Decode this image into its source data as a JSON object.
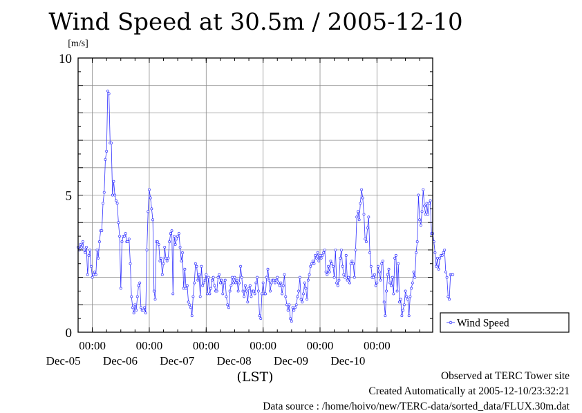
{
  "chart_data": {
    "type": "line",
    "title": "Wind Speed at 30.5m / 2005-12-10",
    "ylabel": "[m/s]",
    "xlabel": "(LST)",
    "ylim": [
      0,
      10
    ],
    "yticks": [
      "0",
      "5",
      "10"
    ],
    "xlim": [
      "2005-12-04T18:00",
      "2005-12-10T23:30"
    ],
    "time_ticks": [
      {
        "x": "2005-12-05T00:00",
        "time": "00:00",
        "date": "Dec-05"
      },
      {
        "x": "2005-12-06T00:00",
        "time": "00:00",
        "date": "Dec-06"
      },
      {
        "x": "2005-12-07T00:00",
        "time": "00:00",
        "date": "Dec-07"
      },
      {
        "x": "2005-12-08T00:00",
        "time": "00:00",
        "date": "Dec-08"
      },
      {
        "x": "2005-12-09T00:00",
        "time": "00:00",
        "date": "Dec-09"
      },
      {
        "x": "2005-12-10T00:00",
        "time": "00:00",
        "date": "Dec-10"
      }
    ],
    "grid": true,
    "legend_position": "right",
    "series": [
      {
        "name": "Wind Speed",
        "color": "#3333ff",
        "x_start": "2005-12-04T18:00",
        "x_step_minutes": 30,
        "values": [
          3.1,
          3.0,
          3.2,
          3.1,
          3.3,
          3.0,
          2.9,
          3.1,
          2.1,
          2.8,
          3.0,
          2.4,
          2.0,
          2.1,
          2.2,
          2.1,
          3.0,
          2.7,
          3.3,
          3.7,
          3.7,
          4.7,
          5.1,
          6.3,
          6.6,
          8.8,
          8.7,
          6.9,
          6.9,
          5.0,
          5.5,
          5.0,
          4.8,
          4.7,
          4.0,
          3.5,
          1.6,
          3.3,
          3.5,
          3.5,
          3.6,
          3.3,
          3.3,
          3.4,
          2.5,
          1.3,
          0.9,
          0.7,
          1.0,
          0.8,
          1.3,
          1.7,
          1.8,
          0.9,
          0.8,
          0.8,
          0.9,
          0.7,
          3.0,
          4.4,
          5.2,
          4.9,
          4.5,
          4.1,
          1.5,
          1.2,
          3.3,
          3.3,
          3.2,
          2.6,
          2.7,
          2.1,
          2.5,
          3.1,
          2.7,
          2.6,
          2.7,
          3.3,
          3.6,
          3.7,
          1.4,
          3.5,
          3.2,
          3.4,
          3.5,
          3.6,
          3.1,
          2.6,
          2.9,
          1.6,
          2.3,
          1.6,
          1.7,
          1.1,
          1.0,
          0.9,
          0.6,
          1.3,
          1.8,
          2.5,
          2.4,
          1.9,
          2.1,
          1.3,
          2.4,
          1.7,
          1.8,
          1.9,
          2.1,
          1.4,
          2.0,
          1.4,
          1.6,
          1.9,
          2.0,
          1.7,
          1.5,
          1.5,
          2.0,
          2.1,
          1.8,
          1.9,
          1.4,
          1.8,
          1.9,
          1.3,
          1.0,
          0.9,
          1.5,
          1.7,
          2.0,
          1.8,
          2.0,
          1.8,
          1.9,
          1.5,
          1.8,
          2.4,
          2.0,
          1.5,
          1.3,
          1.7,
          1.5,
          1.1,
          1.6,
          1.7,
          1.3,
          1.5,
          1.5,
          1.4,
          1.8,
          2.0,
          1.5,
          0.6,
          0.5,
          1.4,
          1.8,
          1.4,
          1.4,
          2.0,
          2.3,
          1.9,
          1.5,
          1.8,
          1.9,
          1.9,
          1.8,
          1.9,
          2.0,
          1.8,
          1.7,
          1.8,
          1.4,
          1.7,
          2.1,
          1.3,
          1.0,
          0.8,
          1.0,
          0.5,
          0.4,
          0.9,
          0.8,
          0.9,
          1.0,
          1.3,
          1.5,
          2.0,
          1.2,
          1.1,
          1.4,
          1.8,
          1.6,
          1.2,
          1.9,
          2.1,
          2.4,
          2.5,
          2.6,
          2.5,
          2.8,
          2.7,
          2.9,
          2.6,
          2.8,
          2.7,
          2.8,
          2.9,
          3.0,
          2.2,
          2.1,
          2.4,
          2.2,
          2.6,
          2.5,
          2.4,
          2.0,
          3.0,
          1.8,
          1.7,
          1.9,
          2.7,
          3.0,
          2.4,
          2.1,
          2.0,
          2.8,
          1.9,
          2.0,
          1.8,
          2.5,
          2.6,
          2.5,
          2.0,
          3.0,
          4.2,
          4.4,
          4.1,
          4.7,
          5.2,
          4.9,
          4.3,
          3.4,
          3.3,
          3.8,
          4.2,
          2.9,
          2.4,
          2.0,
          2.0,
          2.1,
          1.7,
          1.8,
          2.4,
          2.2,
          1.9,
          2.5,
          2.6,
          1.1,
          0.6,
          1.5,
          2.1,
          2.3,
          1.8,
          1.7,
          2.0,
          1.4,
          2.7,
          2.8,
          1.5,
          2.5,
          1.1,
          1.2,
          0.6,
          0.8,
          1.0,
          1.5,
          1.3,
          1.2,
          0.6,
          1.3,
          1.6,
          1.8,
          2.2,
          2.0,
          2.9,
          3.3,
          5.0,
          4.1,
          3.9,
          4.4,
          5.2,
          4.6,
          4.3,
          4.7,
          4.3,
          4.7,
          4.8,
          3.6,
          3.6,
          3.3,
          2.9,
          2.4,
          2.7,
          2.3,
          2.7,
          2.8,
          2.8,
          2.9,
          3.0,
          2.2,
          2.0,
          1.3,
          1.2,
          2.1,
          2.1,
          2.1
        ]
      }
    ],
    "annotations": [
      "Observed at TERC Tower site",
      "Created Automatically at 2005-12-10/23:32:21",
      "Data source : /home/hoivo/new/TERC-data/sorted_data/FLUX.30m.dat"
    ]
  }
}
